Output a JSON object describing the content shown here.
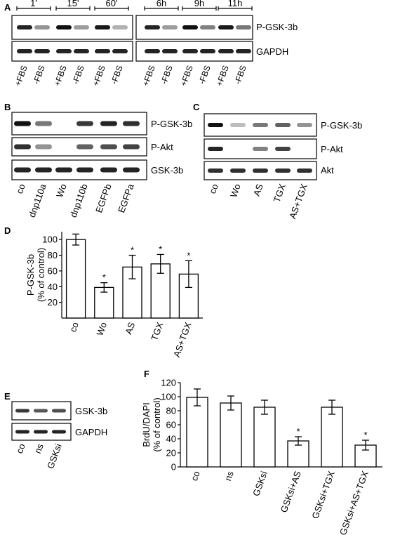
{
  "panels": {
    "A": {
      "letter": "A",
      "timepoints": [
        "1'",
        "15'",
        "60'",
        "6h",
        "9h",
        "11h"
      ],
      "proteins": [
        "P-GSK-3b",
        "GAPDH"
      ],
      "lanes": [
        "+FBS",
        "-FBS",
        "+FBS",
        "-FBS",
        "+FBS",
        "-FBS",
        "+FBS",
        "-FBS",
        "+FBS",
        "-FBS",
        "+FBS",
        "-FBS"
      ],
      "pgsk_intensity": [
        0.9,
        0.35,
        1.0,
        0.3,
        0.95,
        0.2,
        0.9,
        0.3,
        1.0,
        0.45,
        0.95,
        0.5
      ],
      "gapdh_intensity": [
        0.9,
        0.9,
        0.9,
        0.9,
        0.9,
        0.9,
        0.9,
        0.9,
        0.9,
        0.9,
        0.9,
        0.9
      ]
    },
    "B": {
      "letter": "B",
      "proteins": [
        "P-GSK-3b",
        "P-Akt",
        "GSK-3b"
      ],
      "lanes": [
        "co",
        "dnp110a",
        "Wo",
        "dnp110b",
        "EGFPb",
        "EGFPa"
      ],
      "intensity": [
        [
          1.0,
          0.5,
          0.0,
          0.8,
          0.9,
          0.85
        ],
        [
          0.85,
          0.35,
          0.0,
          0.6,
          0.7,
          0.75
        ],
        [
          0.9,
          0.9,
          0.9,
          0.9,
          0.9,
          0.9
        ]
      ]
    },
    "C": {
      "letter": "C",
      "proteins": [
        "P-GSK-3b",
        "P-Akt",
        "Akt"
      ],
      "lanes": [
        "co",
        "Wo",
        "AS",
        "TGX",
        "AS+TGX"
      ],
      "intensity": [
        [
          1.0,
          0.15,
          0.5,
          0.6,
          0.35
        ],
        [
          0.9,
          0.0,
          0.45,
          0.75,
          0.0
        ],
        [
          0.85,
          0.85,
          0.85,
          0.85,
          0.85
        ]
      ]
    },
    "D": {
      "letter": "D"
    },
    "E": {
      "letter": "E",
      "proteins": [
        "GSK-3b",
        "GAPDH"
      ],
      "lanes": [
        "co",
        "ns",
        "GSKsi"
      ],
      "intensity": [
        [
          0.8,
          0.65,
          0.7
        ],
        [
          0.9,
          0.9,
          0.9
        ]
      ]
    },
    "F": {
      "letter": "F"
    }
  },
  "chart_data": [
    {
      "panel": "D",
      "type": "bar",
      "categories": [
        "co",
        "Wo",
        "AS",
        "TGX",
        "AS+TGX"
      ],
      "values": [
        100,
        39,
        65,
        69,
        56
      ],
      "errors": [
        7,
        6,
        15,
        12,
        17
      ],
      "significant": [
        "",
        "*",
        "*",
        "*",
        "*"
      ],
      "ylabel_lines": [
        "P-GSK-3b",
        "(% of control)"
      ],
      "ylim": [
        0,
        110
      ],
      "yticks": [
        "20",
        "40",
        "60",
        "80",
        "100"
      ],
      "grid": false
    },
    {
      "panel": "F",
      "type": "bar",
      "categories": [
        "co",
        "ns",
        "GSKsi",
        "GSKsi+AS",
        "GSKsi+TGX",
        "GSKsi+AS+TGX"
      ],
      "values": [
        99,
        91,
        85,
        37,
        85,
        31
      ],
      "errors": [
        12,
        10,
        10,
        6,
        10,
        7
      ],
      "significant": [
        "",
        "",
        "",
        "*",
        "",
        "*"
      ],
      "ylabel_lines": [
        "BrdU/DAPI",
        "(% of control)"
      ],
      "ylim": [
        0,
        120
      ],
      "yticks": [
        "0",
        "20",
        "40",
        "60",
        "80",
        "100",
        "120"
      ],
      "grid": false
    }
  ]
}
